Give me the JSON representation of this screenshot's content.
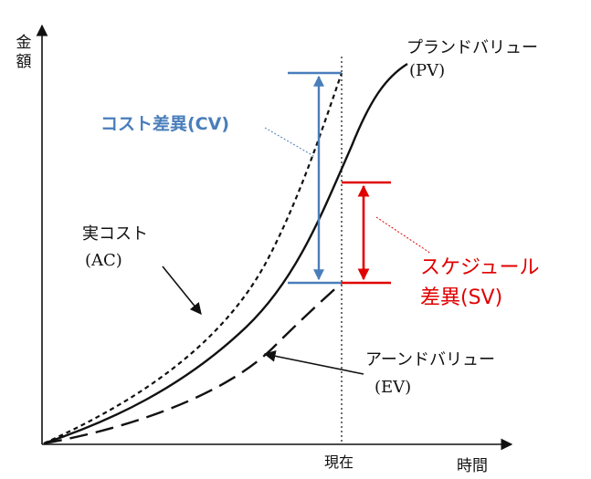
{
  "axes": {
    "y_label_line1": "金",
    "y_label_line2": "額",
    "x_label": "時間",
    "now_label": "現在"
  },
  "curves": {
    "pv_name": "プランドバリュー",
    "pv_abbr": "(PV)",
    "ac_name": "実コスト",
    "ac_abbr": "(AC)",
    "ev_name": "アーンドバリュー",
    "ev_abbr": "(EV)"
  },
  "variances": {
    "cv_label": "コスト差異(CV)",
    "sv_label_line1": "スケジュール",
    "sv_label_line2": "差異(SV)"
  },
  "colors": {
    "cv": "#4a7ebb",
    "sv": "#e00000",
    "ink": "#111111"
  }
}
